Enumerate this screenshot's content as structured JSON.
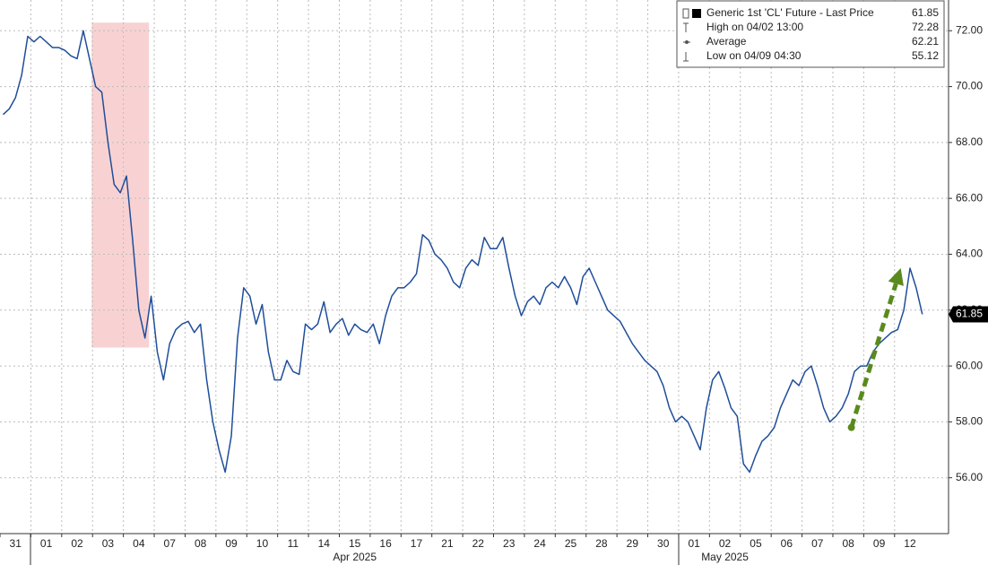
{
  "chart_data": {
    "type": "line",
    "x": [
      0.1,
      0.3,
      0.5,
      0.7,
      0.9,
      1.1,
      1.3,
      1.5,
      1.7,
      1.9,
      2.1,
      2.3,
      2.5,
      2.7,
      2.9,
      3.1,
      3.3,
      3.5,
      3.7,
      3.9,
      4.1,
      4.3,
      4.5,
      4.7,
      4.9,
      5.1,
      5.3,
      5.5,
      5.7,
      5.9,
      6.1,
      6.3,
      6.5,
      6.7,
      6.9,
      7.1,
      7.3,
      7.5,
      7.7,
      7.9,
      8.1,
      8.3,
      8.5,
      8.7,
      8.9,
      9.1,
      9.3,
      9.5,
      9.7,
      9.9,
      10.1,
      10.3,
      10.5,
      10.7,
      10.9,
      11.1,
      11.3,
      11.5,
      11.7,
      11.9,
      12.1,
      12.3,
      12.5,
      12.7,
      12.9,
      13.1,
      13.3,
      13.5,
      13.7,
      13.9,
      14.1,
      14.3,
      14.5,
      14.7,
      14.9,
      15.1,
      15.3,
      15.5,
      15.7,
      15.9,
      16.1,
      16.3,
      16.5,
      16.7,
      16.9,
      17.1,
      17.3,
      17.5,
      17.7,
      17.9,
      18.1,
      18.3,
      18.5,
      18.7,
      18.9,
      19.1,
      19.3,
      19.5,
      19.7,
      19.9,
      20.1,
      20.3,
      20.5,
      20.7,
      20.9,
      21.1,
      21.3,
      21.5,
      21.7,
      21.9,
      22.1,
      22.3,
      22.5,
      22.7,
      22.9,
      23.1,
      23.3,
      23.5,
      23.7,
      23.9,
      24.1,
      24.3,
      24.5,
      24.7,
      24.9,
      25.1,
      25.3,
      25.5,
      25.7,
      25.9,
      26.1,
      26.3,
      26.5,
      26.7,
      26.9,
      27.1,
      27.3,
      27.5,
      27.7,
      27.9,
      28.1,
      28.3,
      28.5,
      28.7,
      28.9,
      29.1,
      29.3,
      29.5,
      29.7,
      29.9
    ],
    "series": [
      {
        "color": "#1f4e9a",
        "values": [
          69.0,
          69.2,
          69.6,
          70.4,
          71.8,
          71.6,
          71.8,
          71.6,
          71.4,
          71.4,
          71.3,
          71.1,
          71.0,
          72.0,
          71.0,
          70.0,
          69.8,
          68.0,
          66.5,
          66.2,
          66.8,
          64.5,
          62.0,
          61.0,
          62.5,
          60.5,
          59.5,
          60.8,
          61.3,
          61.5,
          61.6,
          61.2,
          61.5,
          59.5,
          58.0,
          57.0,
          56.2,
          57.5,
          61.0,
          62.8,
          62.5,
          61.5,
          62.2,
          60.5,
          59.5,
          59.5,
          60.2,
          59.8,
          59.7,
          61.5,
          61.3,
          61.5,
          62.3,
          61.2,
          61.5,
          61.7,
          61.1,
          61.5,
          61.3,
          61.2,
          61.5,
          60.8,
          61.8,
          62.5,
          62.8,
          62.8,
          63.0,
          63.3,
          64.7,
          64.5,
          64.0,
          63.8,
          63.5,
          63.0,
          62.8,
          63.5,
          63.8,
          63.6,
          64.6,
          64.2,
          64.2,
          64.6,
          63.5,
          62.5,
          61.8,
          62.3,
          62.5,
          62.2,
          62.8,
          63.0,
          62.8,
          63.2,
          62.8,
          62.2,
          63.2,
          63.5,
          63.0,
          62.5,
          62.0,
          61.8,
          61.6,
          61.2,
          60.8,
          60.5,
          60.2,
          60.0,
          59.8,
          59.3,
          58.5,
          58.0,
          58.2,
          58.0,
          57.5,
          57.0,
          58.5,
          59.5,
          59.8,
          59.2,
          58.5,
          58.2,
          56.5,
          56.2,
          56.8,
          57.3,
          57.5,
          57.8,
          58.5,
          59.0,
          59.5,
          59.3,
          59.8,
          60.0,
          59.3,
          58.5,
          58.0,
          58.2,
          58.5,
          59.0,
          59.8,
          60.0,
          60.0,
          60.5,
          60.8,
          61.0,
          61.2,
          61.3,
          62.0,
          63.5,
          62.8,
          61.85
        ]
      }
    ],
    "xlim": [
      0,
      30.75
    ],
    "xticks": [
      {
        "value": 0.5,
        "label": "31"
      },
      {
        "value": 1.5,
        "label": "01"
      },
      {
        "value": 2.5,
        "label": "02"
      },
      {
        "value": 3.5,
        "label": "03"
      },
      {
        "value": 4.5,
        "label": "04"
      },
      {
        "value": 5.5,
        "label": "07"
      },
      {
        "value": 6.5,
        "label": "08"
      },
      {
        "value": 7.5,
        "label": "09"
      },
      {
        "value": 8.5,
        "label": "10"
      },
      {
        "value": 9.5,
        "label": "11"
      },
      {
        "value": 10.5,
        "label": "14"
      },
      {
        "value": 11.5,
        "label": "15"
      },
      {
        "value": 12.5,
        "label": "16"
      },
      {
        "value": 13.5,
        "label": "17"
      },
      {
        "value": 14.5,
        "label": "21"
      },
      {
        "value": 15.5,
        "label": "22"
      },
      {
        "value": 16.5,
        "label": "23"
      },
      {
        "value": 17.5,
        "label": "24"
      },
      {
        "value": 18.5,
        "label": "25"
      },
      {
        "value": 19.5,
        "label": "28"
      },
      {
        "value": 20.5,
        "label": "29"
      },
      {
        "value": 21.5,
        "label": "30"
      },
      {
        "value": 22.5,
        "label": "01"
      },
      {
        "value": 23.5,
        "label": "02"
      },
      {
        "value": 24.5,
        "label": "05"
      },
      {
        "value": 25.5,
        "label": "06"
      },
      {
        "value": 26.5,
        "label": "07"
      },
      {
        "value": 27.5,
        "label": "08"
      },
      {
        "value": 28.5,
        "label": "09"
      },
      {
        "value": 29.5,
        "label": "12"
      }
    ],
    "month_labels": [
      {
        "value": 11.5,
        "label": "Apr 2025"
      },
      {
        "value": 23.5,
        "label": "May 2025"
      }
    ],
    "ylim": [
      54.0,
      73.1
    ],
    "yticks": [
      {
        "value": 56,
        "label": "56.00"
      },
      {
        "value": 58,
        "label": "58.00"
      },
      {
        "value": 60,
        "label": "60.00"
      },
      {
        "value": 62,
        "label": "62.00"
      },
      {
        "value": 64,
        "label": "64.00"
      },
      {
        "value": 66,
        "label": "66.00"
      },
      {
        "value": 68,
        "label": "68.00"
      },
      {
        "value": 70,
        "label": "70.00"
      },
      {
        "value": 72,
        "label": "72.00"
      }
    ],
    "grid": true,
    "legend": [
      {
        "label": "Generic 1st 'CL' Future - Last Price",
        "value": 61.85
      },
      {
        "label": "High on 04/02 13:00",
        "value": 72.28
      },
      {
        "label": "Average",
        "value": 62.21
      },
      {
        "label": "Low on 04/09 04:30",
        "value": 55.12
      }
    ],
    "highlight": {
      "x": [
        2.97,
        4.83
      ],
      "y": [
        60.66,
        72.29
      ],
      "color": "#f8d2d2"
    },
    "arrow": {
      "x": [
        27.6,
        29.2
      ],
      "y": [
        57.8,
        63.5
      ],
      "color": "#5a8a1e"
    }
  }
}
